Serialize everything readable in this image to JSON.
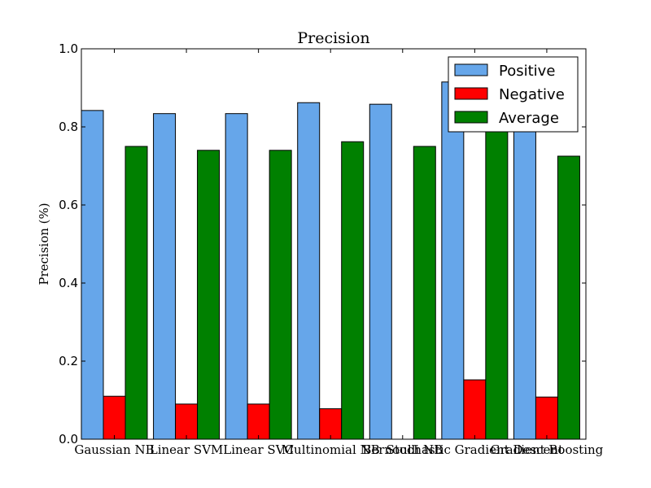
{
  "chart_data": {
    "type": "bar",
    "title": "Precision",
    "xlabel": "",
    "ylabel": "Precision (%)",
    "ylim": [
      0.0,
      1.0
    ],
    "yticks": [
      "0.0",
      "0.2",
      "0.4",
      "0.6",
      "0.8",
      "1.0"
    ],
    "grid": false,
    "legend_position": "top-right",
    "categories": [
      "Gaussian NB",
      "Linear SVM",
      "Linear SVC",
      "Multinomial NB",
      "Bernoulli NB",
      "Stochastic Gradient Descent",
      "Gradient Boosting"
    ],
    "series": [
      {
        "name": "Positive",
        "color": "#66a6ea",
        "values": [
          0.842,
          0.834,
          0.834,
          0.862,
          0.858,
          0.915,
          0.84
        ]
      },
      {
        "name": "Negative",
        "color": "#ff0000",
        "values": [
          0.11,
          0.09,
          0.09,
          0.078,
          0.0,
          0.152,
          0.108
        ]
      },
      {
        "name": "Average",
        "color": "#008000",
        "values": [
          0.75,
          0.74,
          0.74,
          0.762,
          0.75,
          0.79,
          0.725
        ]
      }
    ]
  }
}
